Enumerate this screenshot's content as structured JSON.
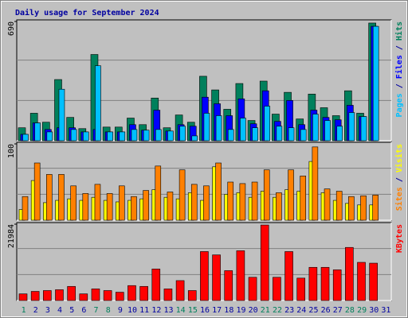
{
  "chart_data": {
    "type": "bar",
    "title": "Daily usage for September 2024",
    "separator": " / ",
    "categories": [
      "1",
      "2",
      "3",
      "4",
      "5",
      "6",
      "7",
      "8",
      "9",
      "10",
      "11",
      "12",
      "13",
      "14",
      "15",
      "16",
      "17",
      "18",
      "19",
      "20",
      "21",
      "22",
      "23",
      "24",
      "25",
      "26",
      "27",
      "28",
      "29",
      "30",
      "31"
    ],
    "category_colors": [
      "#00805c",
      "#0000a0",
      "#0000a0",
      "#0000a0",
      "#0000a0",
      "#0000a0",
      "#00805c",
      "#00805c",
      "#0000a0",
      "#0000a0",
      "#0000a0",
      "#0000a0",
      "#0000a0",
      "#00805c",
      "#00805c",
      "#0000a0",
      "#0000a0",
      "#0000a0",
      "#0000a0",
      "#0000a0",
      "#00805c",
      "#00805c",
      "#0000a0",
      "#0000a0",
      "#0000a0",
      "#0000a0",
      "#0000a0",
      "#00805c",
      "#00805c",
      "#0000a0",
      "#0000a0"
    ],
    "panels": [
      {
        "ylim": [
          0,
          690
        ],
        "yticks": [
          690
        ],
        "series": [
          {
            "name": "Hits",
            "color": "#00805c",
            "values": [
              75,
              159,
              107,
              354,
              135,
              70,
              499,
              79,
              79,
              131,
              93,
              247,
              75,
              149,
              107,
              373,
              294,
              182,
              331,
              117,
              345,
              154,
              280,
              126,
              270,
              191,
              145,
              289,
              159,
              681,
              null
            ]
          },
          {
            "name": "Files",
            "color": "#0000ff",
            "values": [
              37,
              103,
              65,
              75,
              75,
              51,
              65,
              51,
              51,
              93,
              61,
              177,
              56,
              93,
              84,
              252,
              214,
              145,
              242,
              98,
              289,
              112,
              233,
              93,
              177,
              135,
              121,
              205,
              140,
              662,
              null
            ]
          },
          {
            "name": "Pages",
            "color": "#00c0ff",
            "values": [
              37,
              103,
              51,
              298,
              65,
              51,
              434,
              51,
              51,
              65,
              61,
              65,
              56,
              84,
              28,
              159,
              145,
              65,
              131,
              75,
              200,
              84,
              75,
              65,
              154,
              117,
              84,
              163,
              140,
              662,
              null
            ]
          }
        ]
      },
      {
        "ylim": [
          0,
          100
        ],
        "yticks": [
          100
        ],
        "series": [
          {
            "name": "Visits",
            "color": "#ffff00",
            "values": [
              14,
              52,
              23,
              26,
              28,
              26,
              30,
              26,
              24,
              26,
              28,
              40,
              30,
              28,
              36,
              26,
              70,
              34,
              36,
              30,
              38,
              30,
              40,
              38,
              77,
              36,
              26,
              22,
              20,
              20,
              null
            ]
          },
          {
            "name": "Sites",
            "color": "#ff8000",
            "values": [
              31,
              75,
              60,
              60,
              45,
              35,
              47,
              35,
              45,
              31,
              39,
              71,
              37,
              66,
              47,
              45,
              75,
              50,
              48,
              50,
              66,
              36,
              66,
              58,
              96,
              41,
              38,
              31,
              32,
              33,
              null
            ]
          }
        ]
      },
      {
        "ylim": [
          0,
          21984
        ],
        "yticks": [
          21984
        ],
        "series": [
          {
            "name": "KBytes",
            "color": "#ff0000",
            "values": [
              1912,
              2629,
              2868,
              3107,
              4062,
              1912,
              3346,
              2868,
              2390,
              4301,
              4062,
              9080,
              3346,
              5735,
              2868,
              14099,
              13143,
              8603,
              14338,
              6691,
              21745,
              6691,
              14099,
              6452,
              9558,
              9558,
              8842,
              15294,
              10992,
              10753,
              null
            ]
          }
        ]
      }
    ]
  }
}
